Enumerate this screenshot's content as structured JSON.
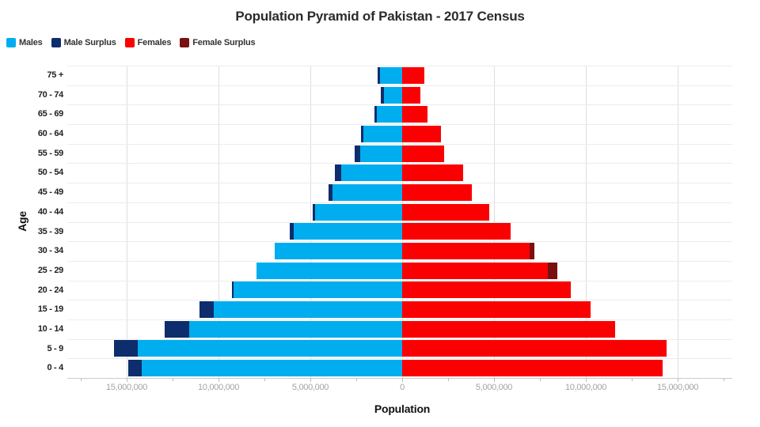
{
  "title": "Population Pyramid of Pakistan - 2017 Census",
  "legend": {
    "items": [
      {
        "label": "Males",
        "color": "#00adee"
      },
      {
        "label": "Male Surplus",
        "color": "#0d2d6d"
      },
      {
        "label": "Females",
        "color": "#fa0000"
      },
      {
        "label": "Female Surplus",
        "color": "#7a1111"
      }
    ]
  },
  "axes": {
    "x_title": "Population",
    "y_title": "Age",
    "x_tick_labels": [
      "15,000,000",
      "10,000,000",
      "5,000,000",
      "0",
      "5,000,000",
      "10,000,000",
      "15,000,000"
    ],
    "x_tick_values": [
      -15000000,
      -10000000,
      -5000000,
      0,
      5000000,
      10000000,
      15000000
    ],
    "minor_tick_values": [
      -17500000,
      -12500000,
      -7500000,
      -2500000,
      2500000,
      7500000,
      12500000,
      17500000
    ],
    "x_range": [
      -18200000,
      18000000
    ],
    "grid": true
  },
  "chart_data": {
    "type": "bar",
    "subtype": "population-pyramid",
    "title": "Population Pyramid of Pakistan - 2017 Census",
    "xlabel": "Population",
    "ylabel": "Age",
    "legend_position": "top-left",
    "categories": [
      "75 +",
      "70 - 74",
      "65 - 69",
      "60 - 64",
      "55 - 59",
      "50 - 54",
      "45 - 49",
      "40 - 44",
      "35 - 39",
      "30 - 34",
      "25 - 29",
      "20 - 24",
      "15 - 19",
      "10 - 14",
      "5 - 9",
      "0 - 4"
    ],
    "series": [
      {
        "name": "Males",
        "color": "#00adee",
        "values": [
          1350000,
          1150000,
          1500000,
          2250000,
          2600000,
          3650000,
          4000000,
          4850000,
          6100000,
          6950000,
          7950000,
          9250000,
          11050000,
          12950000,
          15700000,
          14900000
        ]
      },
      {
        "name": "Females",
        "color": "#fa0000",
        "values": [
          1200000,
          1000000,
          1400000,
          2100000,
          2300000,
          3300000,
          3800000,
          4750000,
          5900000,
          7200000,
          8450000,
          9200000,
          10250000,
          11600000,
          14400000,
          14200000
        ]
      },
      {
        "name": "Male Surplus",
        "color": "#0d2d6d",
        "values": [
          150000,
          150000,
          100000,
          150000,
          300000,
          350000,
          200000,
          100000,
          200000,
          0,
          0,
          50000,
          800000,
          1350000,
          1300000,
          700000
        ]
      },
      {
        "name": "Female Surplus",
        "color": "#7a1111",
        "values": [
          0,
          0,
          0,
          0,
          0,
          0,
          0,
          0,
          0,
          250000,
          500000,
          0,
          0,
          0,
          0,
          0
        ]
      }
    ],
    "notes": "Male bars extend left of zero, female bars right. Surplus (darker shade) drawn at outer end of the longer side's bar."
  }
}
